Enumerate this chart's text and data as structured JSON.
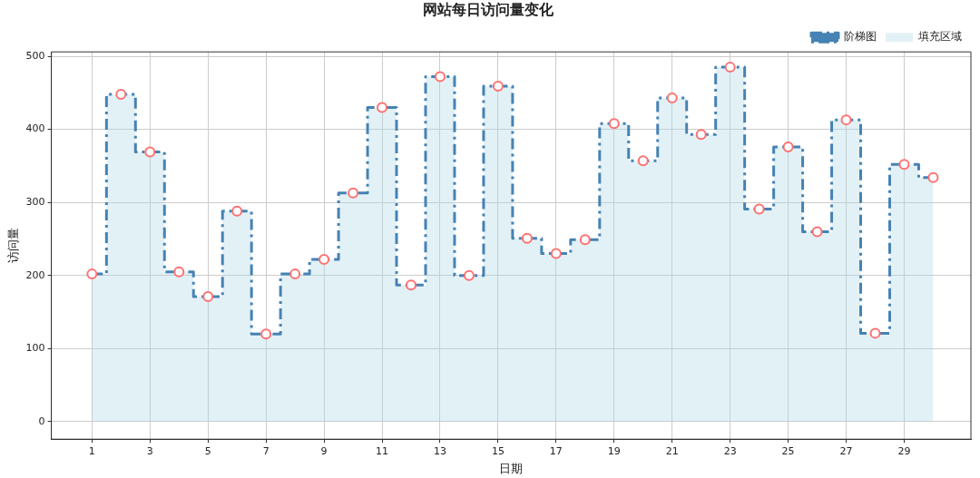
{
  "chart_data": {
    "type": "step",
    "title": "网站每日访问量变化",
    "xlabel": "日期",
    "ylabel": "访问量",
    "x": [
      1,
      2,
      3,
      4,
      5,
      6,
      7,
      8,
      9,
      10,
      11,
      12,
      13,
      14,
      15,
      16,
      17,
      18,
      19,
      20,
      21,
      22,
      23,
      24,
      25,
      26,
      27,
      28,
      29,
      30
    ],
    "series": [
      {
        "name": "阶梯图",
        "color": "#4682b4",
        "marker": "circle",
        "values": [
          202,
          448,
          369,
          205,
          171,
          288,
          120,
          202,
          222,
          313,
          430,
          187,
          472,
          200,
          459,
          251,
          230,
          249,
          408,
          357,
          443,
          393,
          485,
          291,
          376,
          260,
          413,
          121,
          352,
          334
        ]
      },
      {
        "name": "填充区域",
        "type": "area",
        "color": "#add8e6",
        "values": [
          202,
          448,
          369,
          205,
          171,
          288,
          120,
          202,
          222,
          313,
          430,
          187,
          472,
          200,
          459,
          251,
          230,
          249,
          408,
          357,
          443,
          393,
          485,
          291,
          376,
          260,
          413,
          121,
          352,
          334
        ]
      }
    ],
    "xlim": [
      -0.4,
      31.3
    ],
    "xticks": [
      1,
      3,
      5,
      7,
      9,
      11,
      13,
      15,
      17,
      19,
      21,
      23,
      25,
      27,
      29
    ],
    "ylim": [
      -24,
      506
    ],
    "yticks": [
      0,
      100,
      200,
      300,
      400,
      500
    ],
    "grid": true,
    "legend": "top right",
    "line_style": "dashed"
  }
}
